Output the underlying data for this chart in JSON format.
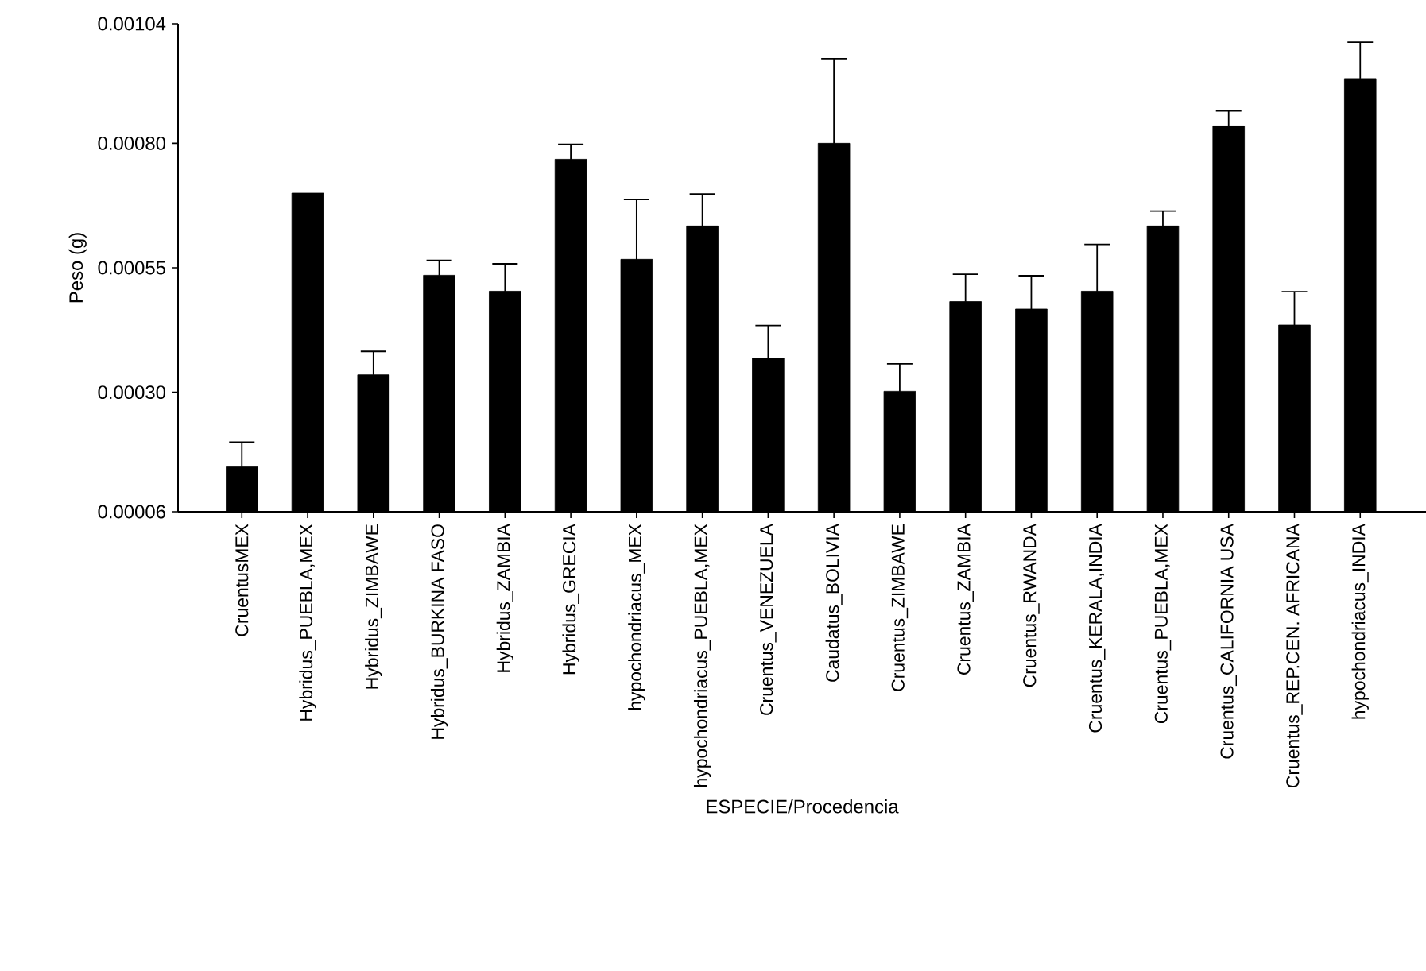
{
  "chart_data": {
    "type": "bar",
    "xlabel": "ESPECIE/Procedencia",
    "ylabel": "Peso (g)",
    "color": "#000000",
    "categories": [
      "CruentusMEX",
      "Hybridus_PUEBLA,MEX",
      "Hybridus_ZIMBAWE",
      "Hybridus_BURKINA FASO",
      "Hybridus_ZAMBIA",
      "Hybridus_GRECIA",
      "hypochondriacus_MEX",
      "hypochondriacus_PUEBLA,MEX",
      "Cruentus_VENEZUELA",
      "Caudatus_BOLIVIA",
      "Cruentus_ZIMBAWE",
      "Cruentus_ZAMBIA",
      "Cruentus_RWANDA",
      "Cruentus_KERALA,INDIA",
      "Cruentus_PUEBLA,MEX",
      "Cruentus_CALIFORNIA USA",
      "Cruentus_REP.CEN. AFRICANA",
      "hypochondriacus_INDIA"
    ],
    "values": [
      0.00015,
      0.0007,
      0.000335,
      0.000535,
      0.000503,
      0.000768,
      0.000567,
      0.000634,
      0.000368,
      0.0008,
      0.000302,
      0.000482,
      0.000467,
      0.000503,
      0.000634,
      0.000835,
      0.000435,
      0.00093
    ],
    "errors": [
      5e-05,
      null,
      4.7e-05,
      3e-05,
      5.5e-05,
      3e-05,
      0.00012,
      6.4e-05,
      6.6e-05,
      0.00017,
      5.5e-05,
      5.5e-05,
      6.7e-05,
      9.4e-05,
      3e-05,
      3e-05,
      6.7e-05,
      7.3e-05
    ],
    "ylim": [
      6e-05,
      0.00104
    ],
    "yticks": [
      {
        "value": 6e-05,
        "label": "0.00006"
      },
      {
        "value": 0.0003,
        "label": "0.00030"
      },
      {
        "value": 0.00055,
        "label": "0.00055"
      },
      {
        "value": 0.0008,
        "label": "0.00080"
      },
      {
        "value": 0.00104,
        "label": "0.00104"
      }
    ],
    "grid": false
  }
}
